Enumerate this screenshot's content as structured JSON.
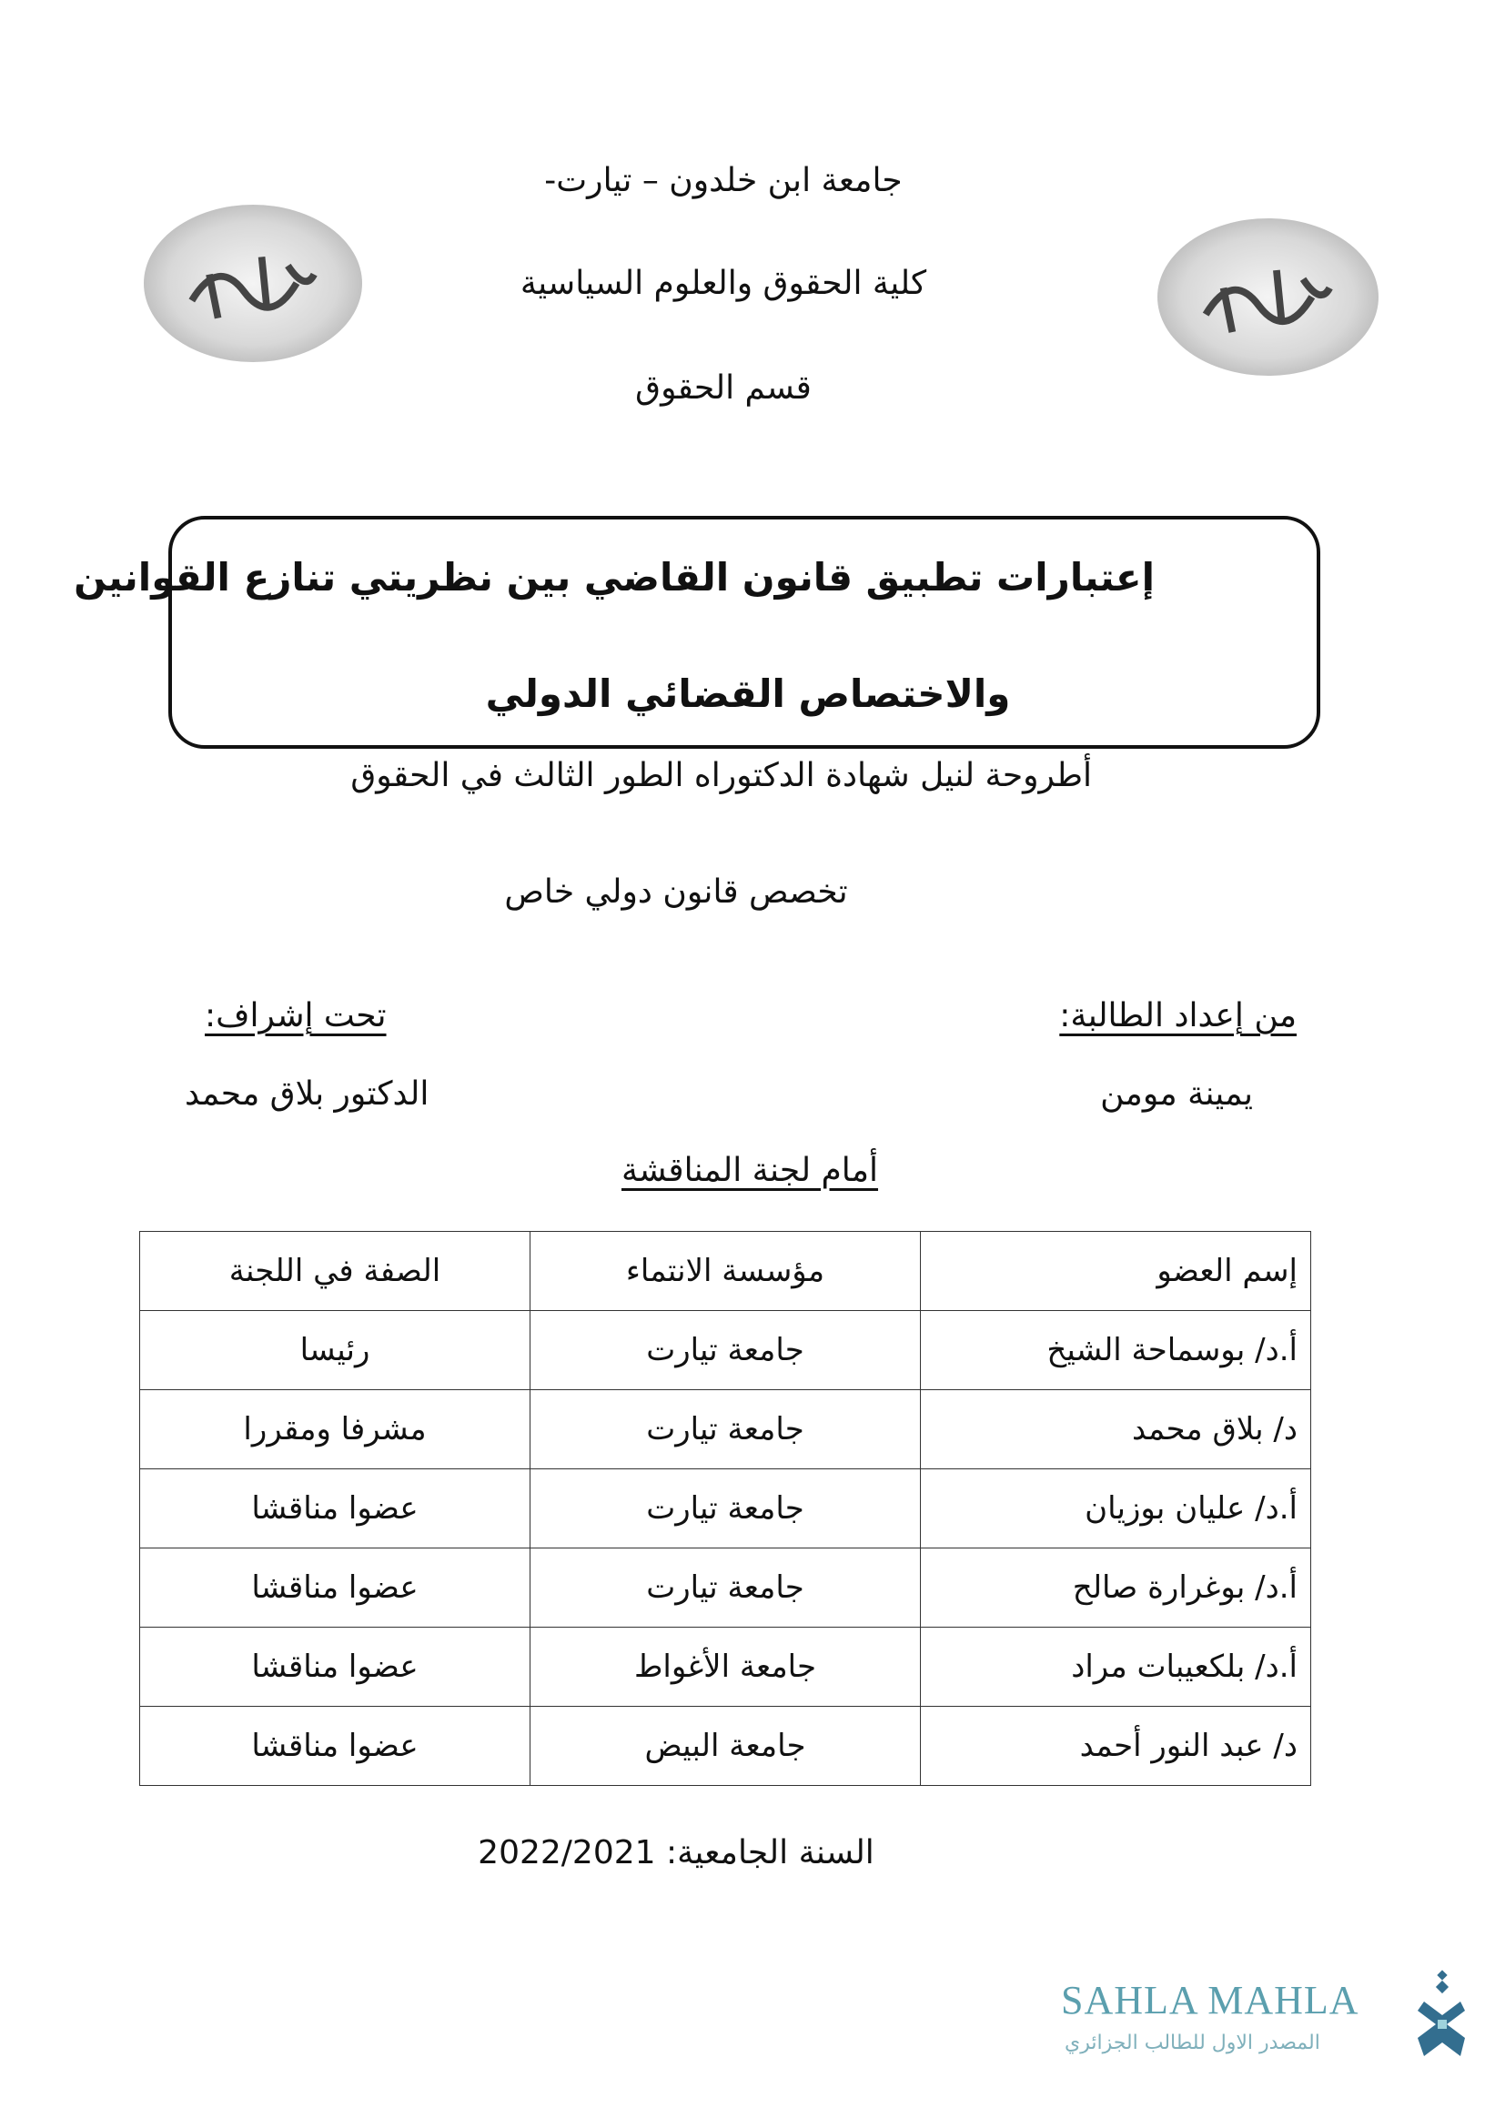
{
  "header": {
    "university": "جامعة ابن خلدون – تيارت-",
    "faculty": "كلية الحقوق والعلوم السياسية",
    "department": "قسم الحقوق",
    "logo_text": "ابن خلدون"
  },
  "title": {
    "line1": "إعتبارات تطبيق قانون القاضي بين نظريتي تنازع القوانين",
    "line2": "والاختصاص القضائي الدولي"
  },
  "thesis": {
    "degree": "أطروحة لنيل شهادة الدكتوراه الطور الثالث في الحقوق",
    "specialty": "تخصص قانون دولي خاص"
  },
  "student": {
    "label": "من إعداد الطالبة:",
    "name": "يمينة مومن"
  },
  "supervisor": {
    "label": "تحت إشراف:",
    "name": "الدكتور بلاق محمد"
  },
  "committee": {
    "heading": "أمام لجنة المناقشة",
    "columns": [
      "إسم العضو",
      "مؤسسة الانتماء",
      "الصفة في اللجنة"
    ],
    "rows": [
      [
        "أ.د/ بوسماحة الشيخ",
        "جامعة تيارت",
        "رئيسا"
      ],
      [
        "د/ بلاق محمد",
        "جامعة تيارت",
        "مشرفا ومقررا"
      ],
      [
        "أ.د/ عليان بوزيان",
        "جامعة تيارت",
        "عضوا مناقشا"
      ],
      [
        "أ.د/ بوغرارة صالح",
        "جامعة تيارت",
        "عضوا مناقشا"
      ],
      [
        "أ.د/ بلكعيبات مراد",
        "جامعة الأغواط",
        "عضوا مناقشا"
      ],
      [
        "د/ عبد النور أحمد",
        "جامعة البيض",
        "عضوا مناقشا"
      ]
    ]
  },
  "academic_year": "السنة الجامعية: 2022/2021",
  "watermark": {
    "brand": "SAHLA MAHLA",
    "tagline": "المصدر الاول للطالب الجزائري",
    "brand_color": "#5b9fae",
    "icon_color": "#336e8f"
  }
}
